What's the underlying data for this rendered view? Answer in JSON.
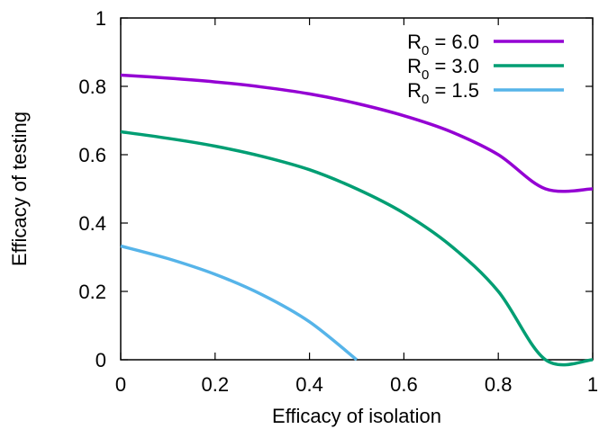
{
  "chart_data": {
    "type": "line",
    "title": "",
    "xlabel": "Efficacy of isolation",
    "ylabel": "Efficacy of testing",
    "xlim": [
      0,
      1
    ],
    "ylim": [
      0,
      1
    ],
    "x_ticks": [
      "0",
      "0.2",
      "0.4",
      "0.6",
      "0.8",
      "1"
    ],
    "y_ticks": [
      "0",
      "0.2",
      "0.4",
      "0.6",
      "0.8",
      "1"
    ],
    "grid": false,
    "legend_position": "top-right",
    "series": [
      {
        "name_main": "R",
        "name_sub": "0",
        "name_rest": " = 6.0",
        "color": "#9400d3",
        "x": [
          0,
          0.1,
          0.2,
          0.3,
          0.4,
          0.5,
          0.6,
          0.7,
          0.8,
          0.9,
          1.0
        ],
        "y": [
          0.833,
          0.824,
          0.813,
          0.798,
          0.778,
          0.75,
          0.714,
          0.667,
          0.6,
          0.5,
          0.5
        ]
      },
      {
        "name_main": "R",
        "name_sub": "0",
        "name_rest": " = 3.0",
        "color": "#009e73",
        "x": [
          0,
          0.1,
          0.2,
          0.3,
          0.4,
          0.5,
          0.6,
          0.7,
          0.8,
          0.9,
          1.0
        ],
        "y": [
          0.667,
          0.648,
          0.625,
          0.595,
          0.556,
          0.5,
          0.429,
          0.333,
          0.2,
          0.0,
          0.0
        ]
      },
      {
        "name_main": "R",
        "name_sub": "0",
        "name_rest": " = 1.5",
        "color": "#56b4e9",
        "x": [
          0,
          0.1,
          0.2,
          0.3,
          0.4,
          0.5
        ],
        "y": [
          0.333,
          0.296,
          0.25,
          0.19,
          0.111,
          0.0
        ]
      }
    ]
  }
}
